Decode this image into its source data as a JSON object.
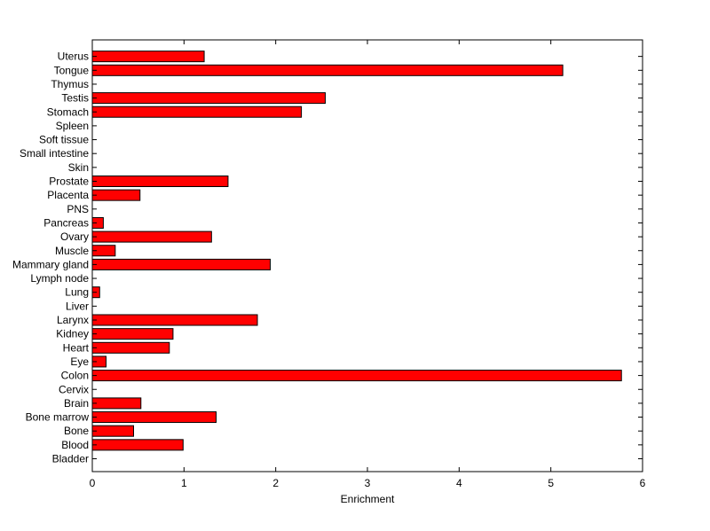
{
  "chart_data": {
    "type": "bar",
    "orientation": "horizontal",
    "title": "",
    "xlabel": "Enrichment",
    "ylabel": "",
    "xlim": [
      0,
      6
    ],
    "x_ticks": [
      0,
      1,
      2,
      3,
      4,
      5,
      6
    ],
    "grid": false,
    "bar_color": "#ff0000",
    "bar_edge_color": "#000000",
    "categories": [
      "Bladder",
      "Blood",
      "Bone",
      "Bone marrow",
      "Brain",
      "Cervix",
      "Colon",
      "Eye",
      "Heart",
      "Kidney",
      "Larynx",
      "Liver",
      "Lung",
      "Lymph node",
      "Mammary gland",
      "Muscle",
      "Ovary",
      "Pancreas",
      "PNS",
      "Placenta",
      "Prostate",
      "Skin",
      "Small intestine",
      "Soft tissue",
      "Spleen",
      "Stomach",
      "Testis",
      "Thymus",
      "Tongue",
      "Uterus"
    ],
    "values": [
      0,
      0.99,
      0.45,
      1.35,
      0.53,
      0,
      5.77,
      0.15,
      0.84,
      0.88,
      1.8,
      0,
      0.08,
      0,
      1.94,
      0.25,
      1.3,
      0.12,
      0,
      0.52,
      1.48,
      0,
      0,
      0,
      0,
      2.28,
      2.54,
      0,
      5.13,
      1.22
    ]
  }
}
